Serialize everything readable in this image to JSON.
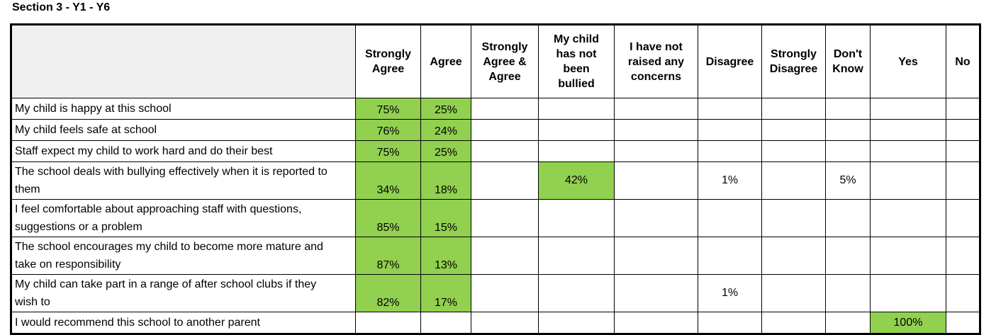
{
  "title": "Section 3 - Y1 - Y6",
  "colors": {
    "highlight_green": "#92d050",
    "corner_gray": "#f0f0f0",
    "border": "#000000"
  },
  "table": {
    "columns": [
      {
        "key": "question",
        "label": ""
      },
      {
        "key": "strongly-agree",
        "label": "Strongly Agree"
      },
      {
        "key": "agree",
        "label": "Agree"
      },
      {
        "key": "strongly-agree-and-agree",
        "label": "Strongly Agree & Agree"
      },
      {
        "key": "not-been-bullied",
        "label": "My child has not been bullied"
      },
      {
        "key": "no-concerns-raised",
        "label": "I have not raised any concerns"
      },
      {
        "key": "disagree",
        "label": "Disagree"
      },
      {
        "key": "strongly-disagree",
        "label": "Strongly Disagree"
      },
      {
        "key": "dont-know",
        "label": "Don't Know"
      },
      {
        "key": "yes",
        "label": "Yes"
      },
      {
        "key": "no",
        "label": "No"
      }
    ],
    "rows": [
      {
        "question": "My child is happy at this school",
        "values": [
          "75%",
          "25%",
          "",
          "",
          "",
          "",
          "",
          "",
          "",
          ""
        ],
        "green": [
          true,
          true,
          false,
          false,
          false,
          false,
          false,
          false,
          false,
          false
        ]
      },
      {
        "question": "My child feels safe at school",
        "values": [
          "76%",
          "24%",
          "",
          "",
          "",
          "",
          "",
          "",
          "",
          ""
        ],
        "green": [
          true,
          true,
          false,
          false,
          false,
          false,
          false,
          false,
          false,
          false
        ]
      },
      {
        "question": "Staff expect my child to work hard and do their best",
        "values": [
          "75%",
          "25%",
          "",
          "",
          "",
          "",
          "",
          "",
          "",
          ""
        ],
        "green": [
          true,
          true,
          false,
          false,
          false,
          false,
          false,
          false,
          false,
          false
        ]
      },
      {
        "question": "The school deals with bullying effectively when it is reported to them",
        "values": [
          "34%",
          "18%",
          "",
          "42%",
          "",
          "1%",
          "",
          "5%",
          "",
          ""
        ],
        "green": [
          true,
          true,
          false,
          true,
          false,
          false,
          false,
          false,
          false,
          false
        ]
      },
      {
        "question": "I feel comfortable about approaching staff with questions, suggestions or a problem",
        "values": [
          "85%",
          "15%",
          "",
          "",
          "",
          "",
          "",
          "",
          "",
          ""
        ],
        "green": [
          true,
          true,
          false,
          false,
          false,
          false,
          false,
          false,
          false,
          false
        ]
      },
      {
        "question": "The school encourages my child to become more mature and take on responsibility",
        "values": [
          "87%",
          "13%",
          "",
          "",
          "",
          "",
          "",
          "",
          "",
          ""
        ],
        "green": [
          true,
          true,
          false,
          false,
          false,
          false,
          false,
          false,
          false,
          false
        ]
      },
      {
        "question": "My child can take part in a range of after school clubs if they wish to",
        "values": [
          "82%",
          "17%",
          "",
          "",
          "",
          "1%",
          "",
          "",
          "",
          ""
        ],
        "green": [
          true,
          true,
          false,
          false,
          false,
          false,
          false,
          false,
          false,
          false
        ]
      },
      {
        "question": "I would recommend this school to another parent",
        "values": [
          "",
          "",
          "",
          "",
          "",
          "",
          "",
          "",
          "100%",
          ""
        ],
        "green": [
          false,
          false,
          false,
          false,
          false,
          false,
          false,
          false,
          true,
          false
        ]
      }
    ]
  }
}
